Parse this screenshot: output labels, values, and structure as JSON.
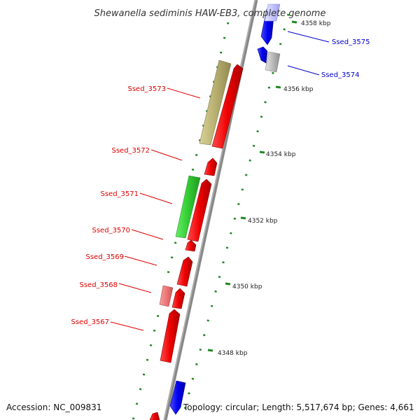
{
  "title": "Shewanella sediminis HAW-EB3, complete genome",
  "footer": {
    "accession": "Accession: NC_009831",
    "topology": "Topology: circular; Length: 5,517,674 bp; Genes: 4,661"
  },
  "scale_labels": [
    "4358 kbp",
    "4356 kbp",
    "4354 kbp",
    "4352 kbp",
    "4350 kbp",
    "4348 kbp"
  ],
  "genes": [
    {
      "id": "Ssed_3575",
      "strand": "minus",
      "color": "#0000ee"
    },
    {
      "id": "Ssed_3574",
      "strand": "minus",
      "color": "#0000ee"
    },
    {
      "id": "Ssed_3573",
      "strand": "plus",
      "color": "#ee0000"
    },
    {
      "id": "Ssed_3572",
      "strand": "plus",
      "color": "#ee0000"
    },
    {
      "id": "Ssed_3571",
      "strand": "plus",
      "color": "#ee0000"
    },
    {
      "id": "Ssed_3570",
      "strand": "plus",
      "color": "#ee0000"
    },
    {
      "id": "Ssed_3569",
      "strand": "plus",
      "color": "#ee0000"
    },
    {
      "id": "Ssed_3568",
      "strand": "plus",
      "color": "#ee0000"
    },
    {
      "id": "Ssed_3567",
      "strand": "plus",
      "color": "#ee0000"
    }
  ],
  "feature_colors": {
    "plus_strand": "#ee0000",
    "minus_strand": "#0000ee",
    "cog_khaki": "#b8b070",
    "cog_green": "#33cc33",
    "cog_pink": "#ee7777",
    "cog_grey": "#bbbbbb",
    "backbone": "#888888",
    "ticks": "#228822"
  }
}
